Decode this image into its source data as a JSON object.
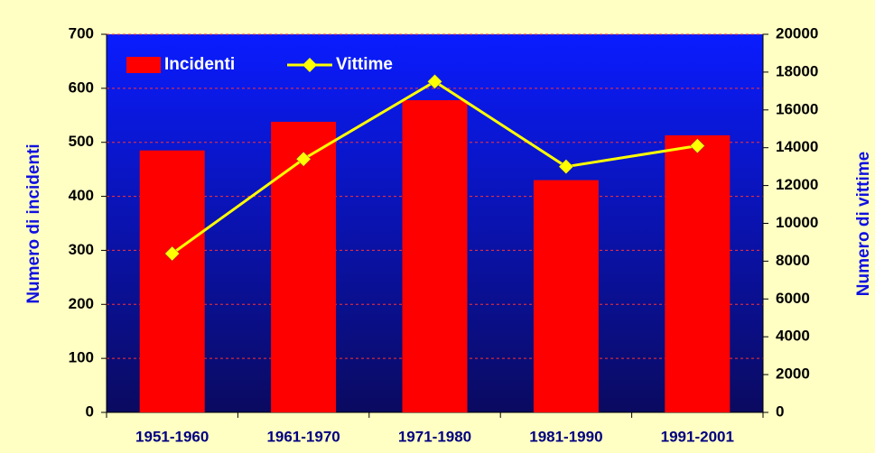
{
  "chart_data": {
    "type": "bar",
    "categories": [
      "1951-1960",
      "1961-1970",
      "1971-1980",
      "1981-1990",
      "1991-2001"
    ],
    "series": [
      {
        "name": "Incidenti",
        "color": "#ff0000",
        "values": [
          485,
          538,
          578,
          430,
          513
        ]
      },
      {
        "name": "Vittime",
        "color": "#ffff00",
        "type": "line",
        "axis": "y2",
        "values": [
          8400,
          13400,
          17500,
          13000,
          14100
        ]
      }
    ],
    "ylabel": "Numero di incidenti",
    "y2label": "Numero di vittime",
    "ylim": [
      0,
      700
    ],
    "yticks": [
      0,
      100,
      200,
      300,
      400,
      500,
      600,
      700
    ],
    "y2lim": [
      0,
      20000
    ],
    "y2ticks": [
      0,
      2000,
      4000,
      6000,
      8000,
      10000,
      12000,
      14000,
      16000,
      18000,
      20000
    ],
    "grid": true,
    "legend": "top-left"
  }
}
